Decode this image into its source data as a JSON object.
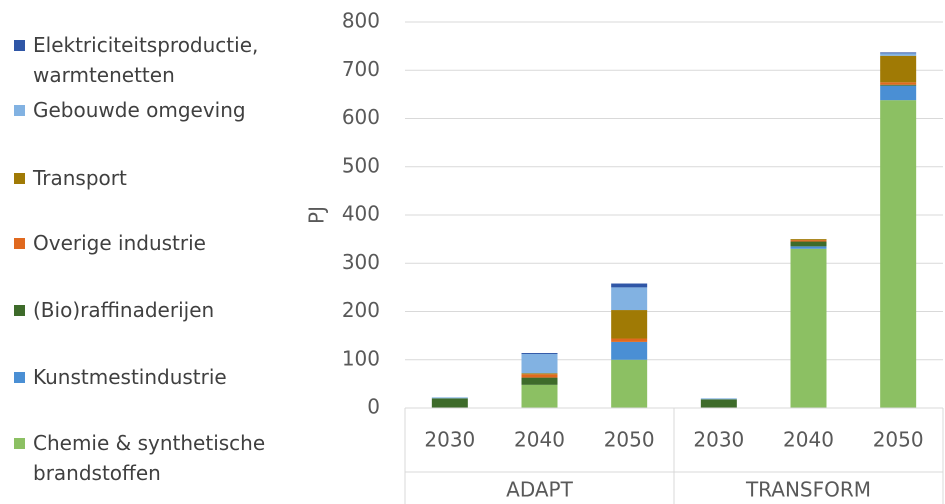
{
  "chart_data": {
    "type": "bar",
    "stacked": true,
    "y_label": "PJ",
    "groups": [
      {
        "name": "ADAPT",
        "categories": [
          "2030",
          "2040",
          "2050"
        ]
      },
      {
        "name": "TRANSFORM",
        "categories": [
          "2030",
          "2040",
          "2050"
        ]
      }
    ],
    "series": [
      {
        "name": "Chemie & synthetische brandstoffen",
        "color": "#8cc063",
        "values": [
          0,
          48,
          100,
          0,
          330,
          638
        ]
      },
      {
        "name": "Kunstmestindustrie",
        "color": "#4a8fd4",
        "values": [
          0,
          0,
          37,
          0,
          5,
          30
        ]
      },
      {
        "name": "(Bio)raffinaderijen",
        "color": "#3e6b2a",
        "values": [
          20,
          15,
          0,
          18,
          10,
          2
        ]
      },
      {
        "name": "Overige industrie",
        "color": "#e0691f",
        "values": [
          0,
          7,
          7,
          0,
          3,
          5
        ]
      },
      {
        "name": "Transport",
        "color": "#a07a05",
        "values": [
          0,
          2,
          59,
          0,
          2,
          55
        ]
      },
      {
        "name": "Gebouwde omgeving",
        "color": "#82b2e2",
        "values": [
          2,
          40,
          47,
          2,
          0,
          5
        ]
      },
      {
        "name": "Elektriciteitsproductie, warmtenetten",
        "color": "#2f56a6",
        "values": [
          0,
          2,
          8,
          0,
          0,
          2
        ]
      }
    ],
    "ylim": [
      0,
      800
    ],
    "yticks": [
      0,
      100,
      200,
      300,
      400,
      500,
      600,
      700,
      800
    ],
    "grid": true,
    "legend": "left"
  }
}
